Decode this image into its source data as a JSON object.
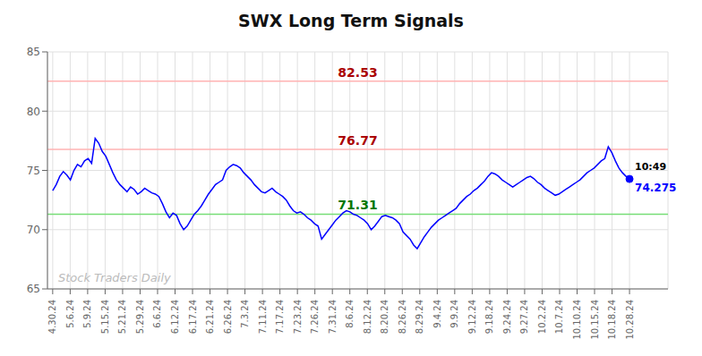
{
  "chart_data": {
    "type": "line",
    "title": "SWX Long Term Signals",
    "color": "blue",
    "grid": true,
    "xlim": [
      -0.3,
      35.2
    ],
    "xticks": [
      {
        "value": 0,
        "label": "4.30.24"
      },
      {
        "value": 1,
        "label": "5.6.24"
      },
      {
        "value": 2,
        "label": "5.9.24"
      },
      {
        "value": 3,
        "label": "5.15.24"
      },
      {
        "value": 4,
        "label": "5.21.24"
      },
      {
        "value": 5,
        "label": "5.29.24"
      },
      {
        "value": 6,
        "label": "6.6.24"
      },
      {
        "value": 7,
        "label": "6.12.24"
      },
      {
        "value": 8,
        "label": "6.17.24"
      },
      {
        "value": 9,
        "label": "6.21.24"
      },
      {
        "value": 10,
        "label": "6.26.24"
      },
      {
        "value": 11,
        "label": "7.3.24"
      },
      {
        "value": 12,
        "label": "7.11.24"
      },
      {
        "value": 13,
        "label": "7.17.24"
      },
      {
        "value": 14,
        "label": "7.23.24"
      },
      {
        "value": 15,
        "label": "7.26.24"
      },
      {
        "value": 16,
        "label": "7.31.24"
      },
      {
        "value": 17,
        "label": "8.6.24"
      },
      {
        "value": 18,
        "label": "8.12.24"
      },
      {
        "value": 19,
        "label": "8.20.24"
      },
      {
        "value": 20,
        "label": "8.26.24"
      },
      {
        "value": 21,
        "label": "8.29.24"
      },
      {
        "value": 22,
        "label": "9.4.24"
      },
      {
        "value": 23,
        "label": "9.9.24"
      },
      {
        "value": 24,
        "label": "9.12.24"
      },
      {
        "value": 25,
        "label": "9.18.24"
      },
      {
        "value": 26,
        "label": "9.24.24"
      },
      {
        "value": 27,
        "label": "9.27.24"
      },
      {
        "value": 28,
        "label": "10.2.24"
      },
      {
        "value": 29,
        "label": "10.7.24"
      },
      {
        "value": 30,
        "label": "10.10.24"
      },
      {
        "value": 31,
        "label": "10.15.24"
      },
      {
        "value": 32,
        "label": "10.18.24"
      },
      {
        "value": 33,
        "label": "10.28.24"
      }
    ],
    "ylim": [
      65,
      85
    ],
    "yticks": [
      65,
      70,
      75,
      80,
      85
    ],
    "x": [
      0,
      0.2025,
      0.4049,
      0.6074,
      0.8098,
      1.0123,
      1.2147,
      1.4172,
      1.6196,
      1.8221,
      2.0245,
      2.227,
      2.4294,
      2.6319,
      2.8344,
      3.0368,
      3.2393,
      3.4417,
      3.6442,
      3.8466,
      4.0491,
      4.2515,
      4.454,
      4.6564,
      4.8589,
      5.0613,
      5.2638,
      5.4663,
      5.6687,
      5.8712,
      6.0736,
      6.2761,
      6.4785,
      6.681,
      6.8834,
      7.0859,
      7.2883,
      7.4908,
      7.6933,
      7.8957,
      8.0982,
      8.3006,
      8.5031,
      8.7055,
      8.908,
      9.1104,
      9.3129,
      9.5153,
      9.7178,
      9.9202,
      10.1227,
      10.3252,
      10.5276,
      10.7301,
      10.9325,
      11.135,
      11.3374,
      11.5399,
      11.7423,
      11.9448,
      12.1472,
      12.3497,
      12.5521,
      12.7546,
      12.9571,
      13.1595,
      13.362,
      13.5644,
      13.7669,
      13.9693,
      14.1718,
      14.3742,
      14.5767,
      14.7791,
      14.9816,
      15.184,
      15.3865,
      15.589,
      15.7914,
      15.9939,
      16.1963,
      16.3988,
      16.6012,
      16.8037,
      17.0061,
      17.2086,
      17.411,
      17.6135,
      17.816,
      18.0184,
      18.2209,
      18.4233,
      18.6258,
      18.8282,
      19.0307,
      19.2331,
      19.4356,
      19.638,
      19.8405,
      20.0429,
      20.2454,
      20.4479,
      20.6503,
      20.8528,
      21.0552,
      21.2577,
      21.4601,
      21.6626,
      21.865,
      22.0675,
      22.2699,
      22.4724,
      22.6748,
      22.8773,
      23.0798,
      23.2822,
      23.4847,
      23.6871,
      23.8896,
      24.092,
      24.2945,
      24.4969,
      24.6994,
      24.9018,
      25.1043,
      25.3067,
      25.5092,
      25.7117,
      25.9141,
      26.1166,
      26.319,
      26.5215,
      26.7239,
      26.9264,
      27.1288,
      27.3313,
      27.5337,
      27.7362,
      27.9387,
      28.1411,
      28.3436,
      28.546,
      28.7485,
      28.9509,
      29.1534,
      29.3558,
      29.5583,
      29.7607,
      29.9632,
      30.1656,
      30.3681,
      30.5706,
      30.773,
      30.9755,
      31.1779,
      31.3804,
      31.5828,
      31.7853,
      31.9877,
      32.1902,
      32.3926,
      32.5951,
      32.7975,
      33
    ],
    "values": [
      73.3,
      73.8,
      74.5,
      74.9,
      74.6,
      74.2,
      75.0,
      75.5,
      75.3,
      75.8,
      76.0,
      75.6,
      77.7,
      77.3,
      76.6,
      76.2,
      75.5,
      74.8,
      74.2,
      73.8,
      73.5,
      73.2,
      73.6,
      73.4,
      73.0,
      73.2,
      73.5,
      73.3,
      73.1,
      73.0,
      72.8,
      72.2,
      71.5,
      71.0,
      71.4,
      71.2,
      70.5,
      70.0,
      70.3,
      70.8,
      71.3,
      71.6,
      72.0,
      72.5,
      73.0,
      73.4,
      73.8,
      74.0,
      74.2,
      75.0,
      75.3,
      75.5,
      75.4,
      75.2,
      74.8,
      74.5,
      74.2,
      73.8,
      73.5,
      73.2,
      73.1,
      73.3,
      73.5,
      73.2,
      73.0,
      72.8,
      72.5,
      72.0,
      71.6,
      71.4,
      71.5,
      71.3,
      71.0,
      70.8,
      70.5,
      70.3,
      69.2,
      69.6,
      70.0,
      70.4,
      70.8,
      71.1,
      71.4,
      71.6,
      71.5,
      71.3,
      71.2,
      71.0,
      70.8,
      70.5,
      70.0,
      70.3,
      70.7,
      71.1,
      71.2,
      71.1,
      71.0,
      70.8,
      70.5,
      69.8,
      69.5,
      69.2,
      68.7,
      68.4,
      68.9,
      69.4,
      69.8,
      70.2,
      70.5,
      70.8,
      71.0,
      71.2,
      71.4,
      71.6,
      71.8,
      72.2,
      72.5,
      72.8,
      73.0,
      73.3,
      73.5,
      73.8,
      74.1,
      74.5,
      74.8,
      74.7,
      74.5,
      74.2,
      74.0,
      73.8,
      73.6,
      73.8,
      74.0,
      74.2,
      74.4,
      74.5,
      74.3,
      74.0,
      73.8,
      73.5,
      73.3,
      73.1,
      72.9,
      73.0,
      73.2,
      73.4,
      73.6,
      73.8,
      74.0,
      74.2,
      74.5,
      74.8,
      75.0,
      75.2,
      75.5,
      75.8,
      76.0,
      77.0,
      76.5,
      75.8,
      75.2,
      74.8,
      74.5,
      74.275
    ],
    "reference_lines": [
      {
        "value": 82.53,
        "label": "82.53",
        "color": "#ffb3b3",
        "label_color": "#aa0000"
      },
      {
        "value": 76.77,
        "label": "76.77",
        "color": "#ffb3b3",
        "label_color": "#aa0000"
      },
      {
        "value": 71.31,
        "label": "71.31",
        "color": "#77dd77",
        "label_color": "#007700"
      }
    ],
    "last_point": {
      "time_label": "10:49",
      "value_label": "74.275"
    },
    "watermark": {
      "text": "Stock Traders Daily",
      "color": "#bbbbbb"
    }
  }
}
